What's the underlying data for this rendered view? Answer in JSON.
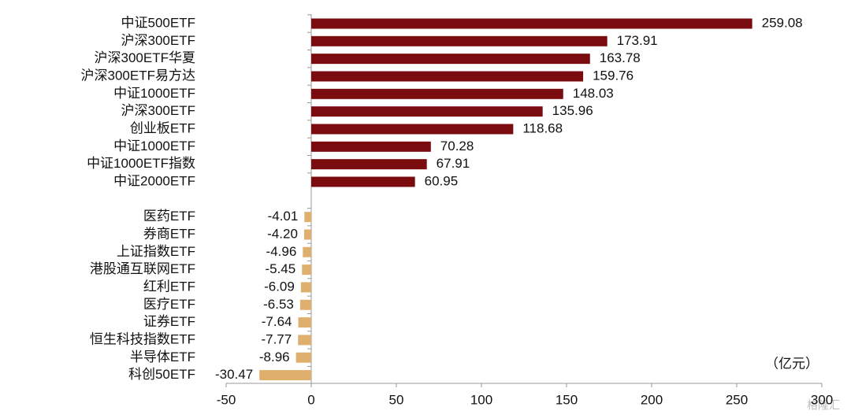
{
  "chart_data": {
    "type": "bar",
    "orientation": "horizontal",
    "categories": [
      "中证500ETF",
      "沪深300ETF",
      "沪深300ETF华夏",
      "沪深300ETF易方达",
      "中证1000ETF",
      "沪深300ETF",
      "创业板ETF",
      "中证1000ETF",
      "中证1000ETF指数",
      "中证2000ETF",
      null,
      "医药ETF",
      "券商ETF",
      "上证指数ETF",
      "港股通互联网ETF",
      "红利ETF",
      "医疗ETF",
      "证券ETF",
      "恒生科技指数ETF",
      "半导体ETF",
      "科创50ETF"
    ],
    "values": [
      259.08,
      173.91,
      163.78,
      159.76,
      148.03,
      135.96,
      118.68,
      70.28,
      67.91,
      60.95,
      null,
      -4.01,
      -4.2,
      -4.96,
      -5.45,
      -6.09,
      -6.53,
      -7.64,
      -7.77,
      -8.96,
      -30.47
    ],
    "value_labels": [
      "259.08",
      "173.91",
      "163.78",
      "159.76",
      "148.03",
      "135.96",
      "118.68",
      "70.28",
      "67.91",
      "60.95",
      null,
      "-4.01",
      "-4.20",
      "-4.96",
      "-5.45",
      "-6.09",
      "-6.53",
      "-7.64",
      "-7.77",
      "-8.96",
      "-30.47"
    ],
    "colors": {
      "positive": "#7a0c10",
      "negative": "#dfb06d"
    },
    "xlim": [
      -50,
      300
    ],
    "xticks": [
      -50,
      0,
      50,
      100,
      150,
      200,
      250,
      300
    ],
    "unit_label": "（亿元）",
    "watermark": "格隆汇"
  }
}
